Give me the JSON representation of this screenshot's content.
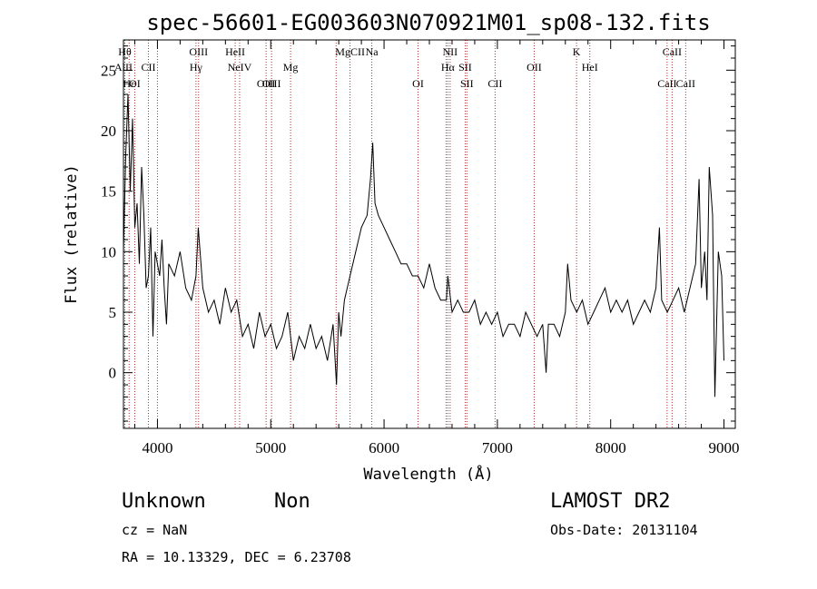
{
  "chart_data": {
    "type": "line",
    "title": "spec-56601-EG003603N070921M01_sp08-132.fits",
    "xlabel": "Wavelength (Å)",
    "ylabel": "Flux (relative)",
    "xlim": [
      3700,
      9100
    ],
    "ylim": [
      -4.6,
      27.5
    ],
    "xticks": [
      4000,
      5000,
      6000,
      7000,
      8000,
      9000
    ],
    "yticks": [
      0,
      5,
      10,
      15,
      20,
      25
    ],
    "grid": false,
    "series": [
      {
        "x": [
          3700,
          3720,
          3740,
          3760,
          3780,
          3800,
          3820,
          3840,
          3860,
          3880,
          3900,
          3920,
          3940,
          3960,
          3980,
          4000,
          4020,
          4040,
          4060,
          4080,
          4100,
          4150,
          4200,
          4250,
          4300,
          4340,
          4360,
          4400,
          4450,
          4500,
          4550,
          4600,
          4650,
          4700,
          4750,
          4800,
          4850,
          4900,
          4950,
          5000,
          5050,
          5100,
          5150,
          5200,
          5250,
          5300,
          5350,
          5400,
          5450,
          5500,
          5550,
          5580,
          5600,
          5620,
          5650,
          5700,
          5750,
          5800,
          5850,
          5880,
          5900,
          5920,
          5950,
          6000,
          6050,
          6100,
          6150,
          6200,
          6250,
          6300,
          6350,
          6400,
          6450,
          6500,
          6550,
          6563,
          6600,
          6650,
          6700,
          6750,
          6800,
          6850,
          6900,
          6950,
          7000,
          7050,
          7100,
          7150,
          7200,
          7250,
          7300,
          7350,
          7400,
          7430,
          7450,
          7500,
          7550,
          7600,
          7620,
          7650,
          7700,
          7750,
          7800,
          7850,
          7900,
          7950,
          8000,
          8050,
          8100,
          8150,
          8200,
          8250,
          8300,
          8350,
          8400,
          8430,
          8450,
          8500,
          8550,
          8600,
          8650,
          8700,
          8750,
          8780,
          8800,
          8830,
          8850,
          8870,
          8900,
          8920,
          8950,
          8980,
          9000
        ],
        "y": [
          10,
          18,
          23,
          15,
          21,
          12,
          14,
          9,
          17,
          13,
          7,
          8,
          12,
          3,
          10,
          9,
          8,
          11,
          7,
          4,
          9,
          8,
          10,
          7,
          6,
          8,
          12,
          7,
          5,
          6,
          4,
          7,
          5,
          6,
          3,
          4,
          2,
          5,
          3,
          4,
          2,
          3,
          5,
          1,
          3,
          2,
          4,
          2,
          3,
          1,
          4,
          -1,
          5,
          3,
          6,
          8,
          10,
          12,
          13,
          16,
          19,
          14,
          13,
          12,
          11,
          10,
          9,
          9,
          8,
          8,
          7,
          9,
          7,
          6,
          6,
          8,
          5,
          6,
          5,
          5,
          6,
          4,
          5,
          4,
          5,
          3,
          4,
          4,
          3,
          5,
          4,
          3,
          4,
          0,
          4,
          4,
          3,
          5,
          9,
          6,
          5,
          6,
          4,
          5,
          6,
          7,
          5,
          6,
          5,
          6,
          4,
          5,
          6,
          5,
          7,
          12,
          6,
          5,
          6,
          7,
          5,
          7,
          9,
          16,
          7,
          10,
          6,
          17,
          13,
          -2,
          10,
          8,
          1
        ]
      }
    ],
    "line_marks": [
      {
        "label": "AlII",
        "wave": 3700,
        "row": 2
      },
      {
        "label": "Hθ",
        "wave": 3712,
        "row": 1
      },
      {
        "label": "Hε",
        "wave": 3750,
        "row": 3
      },
      {
        "label": "OI",
        "wave": 3800,
        "row": 3
      },
      {
        "label": "CII",
        "wave": 3920,
        "row": 2
      },
      {
        "label": "OIII",
        "wave": 4363,
        "row": 1
      },
      {
        "label": "Hγ",
        "wave": 4340,
        "row": 2
      },
      {
        "label": "HeII",
        "wave": 4686,
        "row": 1
      },
      {
        "label": "NeIV",
        "wave": 4725,
        "row": 2
      },
      {
        "label": "OIII",
        "wave": 4959,
        "row": 3
      },
      {
        "label": "OIII",
        "wave": 5007,
        "row": 3
      },
      {
        "label": "Mg",
        "wave": 5175,
        "row": 2
      },
      {
        "label": "MgCII",
        "wave": 5700,
        "row": 1
      },
      {
        "label": "Na",
        "wave": 5892,
        "row": 1
      },
      {
        "label": "OI",
        "wave": 6300,
        "row": 3
      },
      {
        "label": "NII",
        "wave": 6583,
        "row": 1
      },
      {
        "label": "Hα",
        "wave": 6563,
        "row": 2
      },
      {
        "label": "SII",
        "wave": 6716,
        "row": 2
      },
      {
        "label": "SII",
        "wave": 6731,
        "row": 3
      },
      {
        "label": "CII",
        "wave": 6980,
        "row": 3
      },
      {
        "label": "OII",
        "wave": 7325,
        "row": 2
      },
      {
        "label": "K",
        "wave": 7699,
        "row": 1
      },
      {
        "label": "HeI",
        "wave": 7816,
        "row": 2
      },
      {
        "label": "CaII",
        "wave": 8542,
        "row": 1
      },
      {
        "label": "CaII",
        "wave": 8498,
        "row": 3
      },
      {
        "label": "CaII",
        "wave": 8662,
        "row": 3
      }
    ],
    "marker_waves": [
      3700,
      3712,
      3750,
      3800,
      3920,
      4000,
      4340,
      4363,
      4686,
      4725,
      4959,
      5007,
      5175,
      5577,
      5700,
      5892,
      6300,
      6548,
      6563,
      6583,
      6716,
      6731,
      6980,
      7325,
      7699,
      7816,
      8498,
      8542,
      8662
    ],
    "marker_color": "#b03030"
  },
  "info": {
    "class_label": "Unknown",
    "subclass_label": "Non",
    "survey": "LAMOST DR2",
    "cz": "cz = NaN",
    "obs_date": "Obs-Date: 20131104",
    "radec": "RA =  10.13329, DEC =   6.23708"
  }
}
